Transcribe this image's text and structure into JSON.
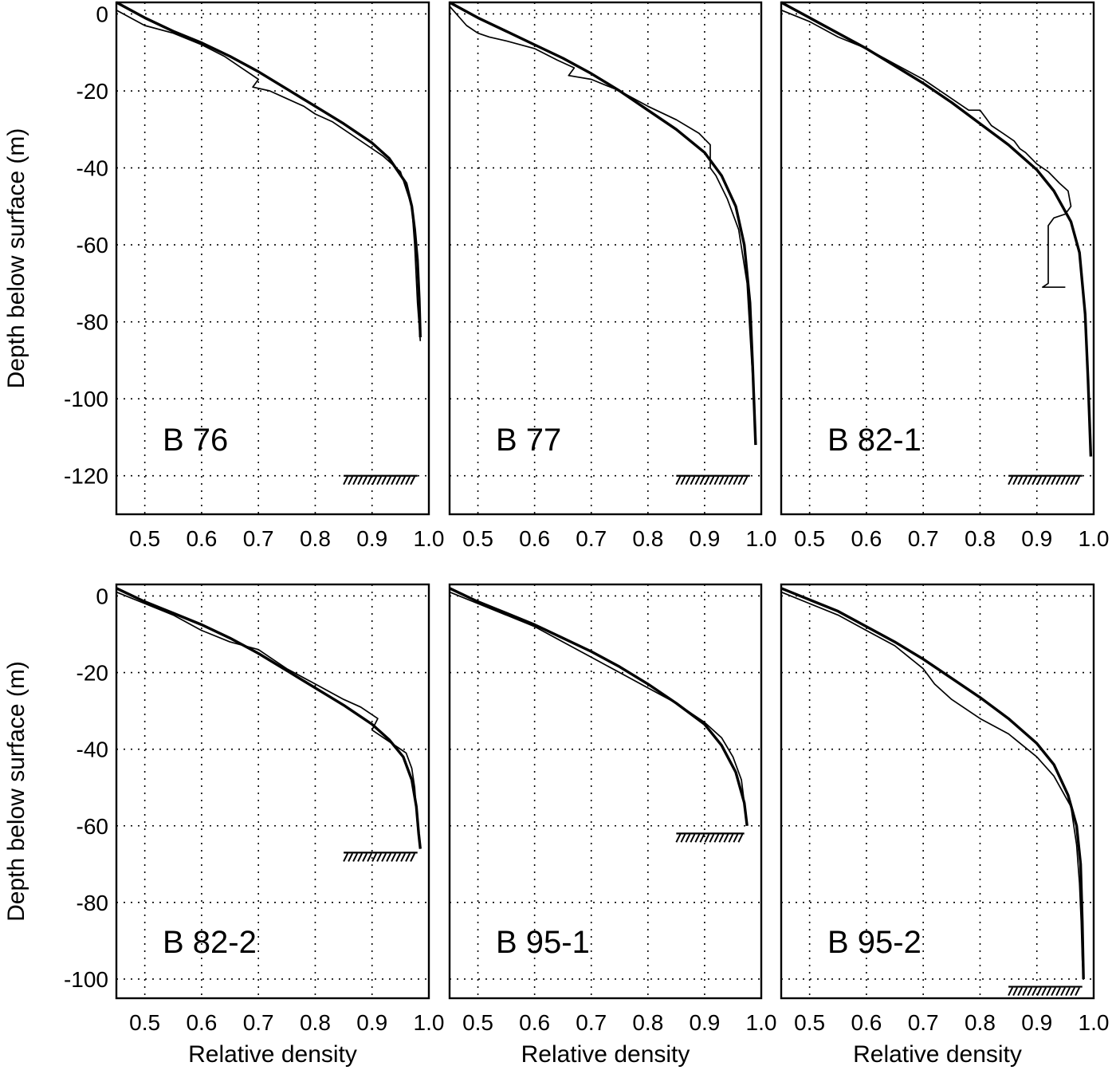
{
  "chart_data": [
    {
      "type": "line",
      "panel_label": "B 76",
      "xlabel": "",
      "ylabel": "Depth below surface (m)",
      "xlim": [
        0.45,
        1.0
      ],
      "ylim": [
        -130,
        3
      ],
      "x_ticks": [
        "0.5",
        "0.6",
        "0.7",
        "0.8",
        "0.9",
        "1.0"
      ],
      "y_ticks": [
        "0",
        "-20",
        "-40",
        "-60",
        "-80",
        "-100",
        "-120"
      ],
      "grid": true,
      "bed": {
        "depth": -120,
        "x_range": [
          0.85,
          0.98
        ]
      },
      "series": [
        {
          "role": "measured",
          "x": [
            0.45,
            0.5,
            0.55,
            0.6,
            0.64,
            0.67,
            0.7,
            0.69,
            0.72,
            0.75,
            0.78,
            0.8,
            0.83,
            0.86,
            0.89,
            0.92,
            0.95,
            0.97,
            0.975,
            0.98,
            0.985
          ],
          "y": [
            1,
            -3,
            -5,
            -8,
            -11,
            -14,
            -17,
            -19,
            -20,
            -22,
            -24,
            -26,
            -28,
            -31,
            -34,
            -37,
            -41,
            -50,
            -60,
            -75,
            -85
          ]
        },
        {
          "role": "model",
          "x": [
            0.45,
            0.5,
            0.55,
            0.6,
            0.65,
            0.7,
            0.75,
            0.8,
            0.85,
            0.9,
            0.93,
            0.96,
            0.97,
            0.975,
            0.98,
            0.983,
            0.985
          ],
          "y": [
            3,
            -1,
            -4.5,
            -7.5,
            -11,
            -15,
            -19.5,
            -24,
            -28.5,
            -33.5,
            -37.5,
            -44,
            -50,
            -56,
            -64,
            -74,
            -84
          ]
        }
      ]
    },
    {
      "type": "line",
      "panel_label": "B 77",
      "xlabel": "",
      "ylabel": "",
      "xlim": [
        0.45,
        1.0
      ],
      "ylim": [
        -130,
        3
      ],
      "x_ticks": [
        "0.5",
        "0.6",
        "0.7",
        "0.8",
        "0.9",
        "1.0"
      ],
      "y_ticks": [
        "0",
        "-20",
        "-40",
        "-60",
        "-80",
        "-100",
        "-120"
      ],
      "grid": true,
      "bed": {
        "depth": -120,
        "x_range": [
          0.85,
          0.98
        ]
      },
      "series": [
        {
          "role": "measured",
          "x": [
            0.45,
            0.48,
            0.5,
            0.52,
            0.55,
            0.6,
            0.64,
            0.67,
            0.66,
            0.7,
            0.75,
            0.8,
            0.85,
            0.89,
            0.91,
            0.91,
            0.92,
            0.94,
            0.96,
            0.975,
            0.985,
            0.99
          ],
          "y": [
            2,
            -3,
            -5,
            -6,
            -7,
            -9,
            -12,
            -14,
            -16,
            -17,
            -20,
            -24,
            -27.5,
            -31,
            -34,
            -40,
            -42,
            -48,
            -56,
            -70,
            -95,
            -110
          ]
        },
        {
          "role": "model",
          "x": [
            0.45,
            0.5,
            0.55,
            0.6,
            0.65,
            0.7,
            0.75,
            0.8,
            0.85,
            0.9,
            0.93,
            0.955,
            0.97,
            0.98,
            0.985,
            0.99
          ],
          "y": [
            3,
            -1,
            -4.5,
            -8,
            -11.5,
            -15.5,
            -20,
            -25,
            -30,
            -36,
            -42,
            -50,
            -60,
            -75,
            -92,
            -112
          ]
        }
      ]
    },
    {
      "type": "line",
      "panel_label": "B 82-1",
      "xlabel": "",
      "ylabel": "",
      "xlim": [
        0.45,
        1.0
      ],
      "ylim": [
        -130,
        3
      ],
      "x_ticks": [
        "0.5",
        "0.6",
        "0.7",
        "0.8",
        "0.9",
        "1.0"
      ],
      "y_ticks": [
        "0",
        "-20",
        "-40",
        "-60",
        "-80",
        "-100",
        "-120"
      ],
      "grid": true,
      "bed": {
        "depth": -120,
        "x_range": [
          0.85,
          0.98
        ]
      },
      "series": [
        {
          "role": "measured",
          "x": [
            0.45,
            0.5,
            0.55,
            0.6,
            0.65,
            0.7,
            0.75,
            0.78,
            0.8,
            0.81,
            0.82,
            0.84,
            0.86,
            0.87,
            0.88,
            0.9,
            0.92,
            0.94,
            0.955,
            0.96,
            0.95,
            0.93,
            0.92,
            0.92,
            0.91,
            0.92,
            0.95
          ],
          "y": [
            1,
            -2,
            -6,
            -9,
            -13,
            -17,
            -22,
            -25,
            -25,
            -27,
            -29,
            -31,
            -33,
            -35,
            -36,
            -39,
            -41,
            -44,
            -46,
            -50,
            -52,
            -53,
            -55,
            -70,
            -71,
            -71,
            -71
          ]
        },
        {
          "role": "model",
          "x": [
            0.45,
            0.5,
            0.55,
            0.6,
            0.65,
            0.7,
            0.75,
            0.8,
            0.85,
            0.9,
            0.93,
            0.96,
            0.975,
            0.985,
            0.99,
            0.995
          ],
          "y": [
            3,
            -1,
            -5,
            -9,
            -13.5,
            -18,
            -23,
            -28.5,
            -34,
            -40.5,
            -46,
            -54,
            -62,
            -78,
            -95,
            -115
          ]
        }
      ]
    },
    {
      "type": "line",
      "panel_label": "B 82-2",
      "xlabel": "Relative density",
      "ylabel": "Depth below surface (m)",
      "xlim": [
        0.45,
        1.0
      ],
      "ylim": [
        -105,
        3
      ],
      "x_ticks": [
        "0.5",
        "0.6",
        "0.7",
        "0.8",
        "0.9",
        "1.0"
      ],
      "y_ticks": [
        "0",
        "-20",
        "-40",
        "-60",
        "-80",
        "-100"
      ],
      "grid": true,
      "bed": {
        "depth": -67,
        "x_range": [
          0.85,
          0.98
        ]
      },
      "series": [
        {
          "role": "measured",
          "x": [
            0.45,
            0.5,
            0.55,
            0.6,
            0.65,
            0.7,
            0.72,
            0.75,
            0.8,
            0.85,
            0.88,
            0.91,
            0.9,
            0.93,
            0.96,
            0.97,
            0.975,
            0.98,
            0.985
          ],
          "y": [
            1,
            -2,
            -5,
            -9,
            -12,
            -14,
            -16,
            -19,
            -23,
            -27,
            -29,
            -32,
            -35,
            -38,
            -41,
            -45,
            -50,
            -60,
            -66
          ]
        },
        {
          "role": "model",
          "x": [
            0.45,
            0.5,
            0.55,
            0.6,
            0.65,
            0.7,
            0.75,
            0.8,
            0.85,
            0.9,
            0.93,
            0.955,
            0.97,
            0.978,
            0.982,
            0.985
          ],
          "y": [
            2,
            -1.5,
            -4.5,
            -7.5,
            -11,
            -15,
            -19.5,
            -24,
            -28.5,
            -33.5,
            -37.5,
            -42,
            -48,
            -55,
            -62,
            -66
          ]
        }
      ]
    },
    {
      "type": "line",
      "panel_label": "B 95-1",
      "xlabel": "Relative density",
      "ylabel": "",
      "xlim": [
        0.45,
        1.0
      ],
      "ylim": [
        -105,
        3
      ],
      "x_ticks": [
        "0.5",
        "0.6",
        "0.7",
        "0.8",
        "0.9",
        "1.0"
      ],
      "y_ticks": [
        "0",
        "-20",
        "-40",
        "-60",
        "-80",
        "-100"
      ],
      "grid": true,
      "bed": {
        "depth": -62,
        "x_range": [
          0.85,
          0.97
        ]
      },
      "series": [
        {
          "role": "measured",
          "x": [
            0.45,
            0.5,
            0.55,
            0.6,
            0.65,
            0.7,
            0.75,
            0.8,
            0.85,
            0.9,
            0.93,
            0.95,
            0.965,
            0.97,
            0.975
          ],
          "y": [
            1,
            -2,
            -5,
            -8,
            -12,
            -16,
            -20,
            -24,
            -28,
            -33,
            -37,
            -42,
            -48,
            -54,
            -59
          ]
        },
        {
          "role": "model",
          "x": [
            0.45,
            0.5,
            0.55,
            0.6,
            0.65,
            0.7,
            0.75,
            0.8,
            0.85,
            0.9,
            0.93,
            0.955,
            0.97,
            0.975
          ],
          "y": [
            2,
            -1.5,
            -4.5,
            -7.5,
            -11,
            -14.5,
            -18.5,
            -23,
            -28,
            -33.5,
            -39,
            -46,
            -54,
            -60
          ]
        }
      ]
    },
    {
      "type": "line",
      "panel_label": "B 95-2",
      "xlabel": "Relative density",
      "ylabel": "",
      "xlim": [
        0.45,
        1.0
      ],
      "ylim": [
        -105,
        3
      ],
      "x_ticks": [
        "0.5",
        "0.6",
        "0.7",
        "0.8",
        "0.9",
        "1.0"
      ],
      "y_ticks": [
        "0",
        "-20",
        "-40",
        "-60",
        "-80",
        "-100"
      ],
      "grid": true,
      "bed": {
        "depth": -102,
        "x_range": [
          0.85,
          0.98
        ]
      },
      "series": [
        {
          "role": "measured",
          "x": [
            0.45,
            0.5,
            0.55,
            0.6,
            0.65,
            0.7,
            0.72,
            0.75,
            0.8,
            0.85,
            0.9,
            0.93,
            0.96,
            0.97,
            0.975,
            0.978,
            0.98,
            0.982
          ],
          "y": [
            1,
            -2,
            -5,
            -9,
            -13,
            -19,
            -23,
            -27,
            -32,
            -36,
            -42,
            -47,
            -55,
            -65,
            -75,
            -85,
            -95,
            -100
          ]
        },
        {
          "role": "model",
          "x": [
            0.45,
            0.5,
            0.55,
            0.6,
            0.65,
            0.7,
            0.75,
            0.8,
            0.85,
            0.9,
            0.93,
            0.955,
            0.97,
            0.977,
            0.98,
            0.982
          ],
          "y": [
            2,
            -1,
            -4,
            -8,
            -12,
            -16.5,
            -21.5,
            -26.5,
            -32,
            -38.5,
            -44,
            -52,
            -60,
            -70,
            -85,
            -100
          ]
        }
      ]
    }
  ]
}
